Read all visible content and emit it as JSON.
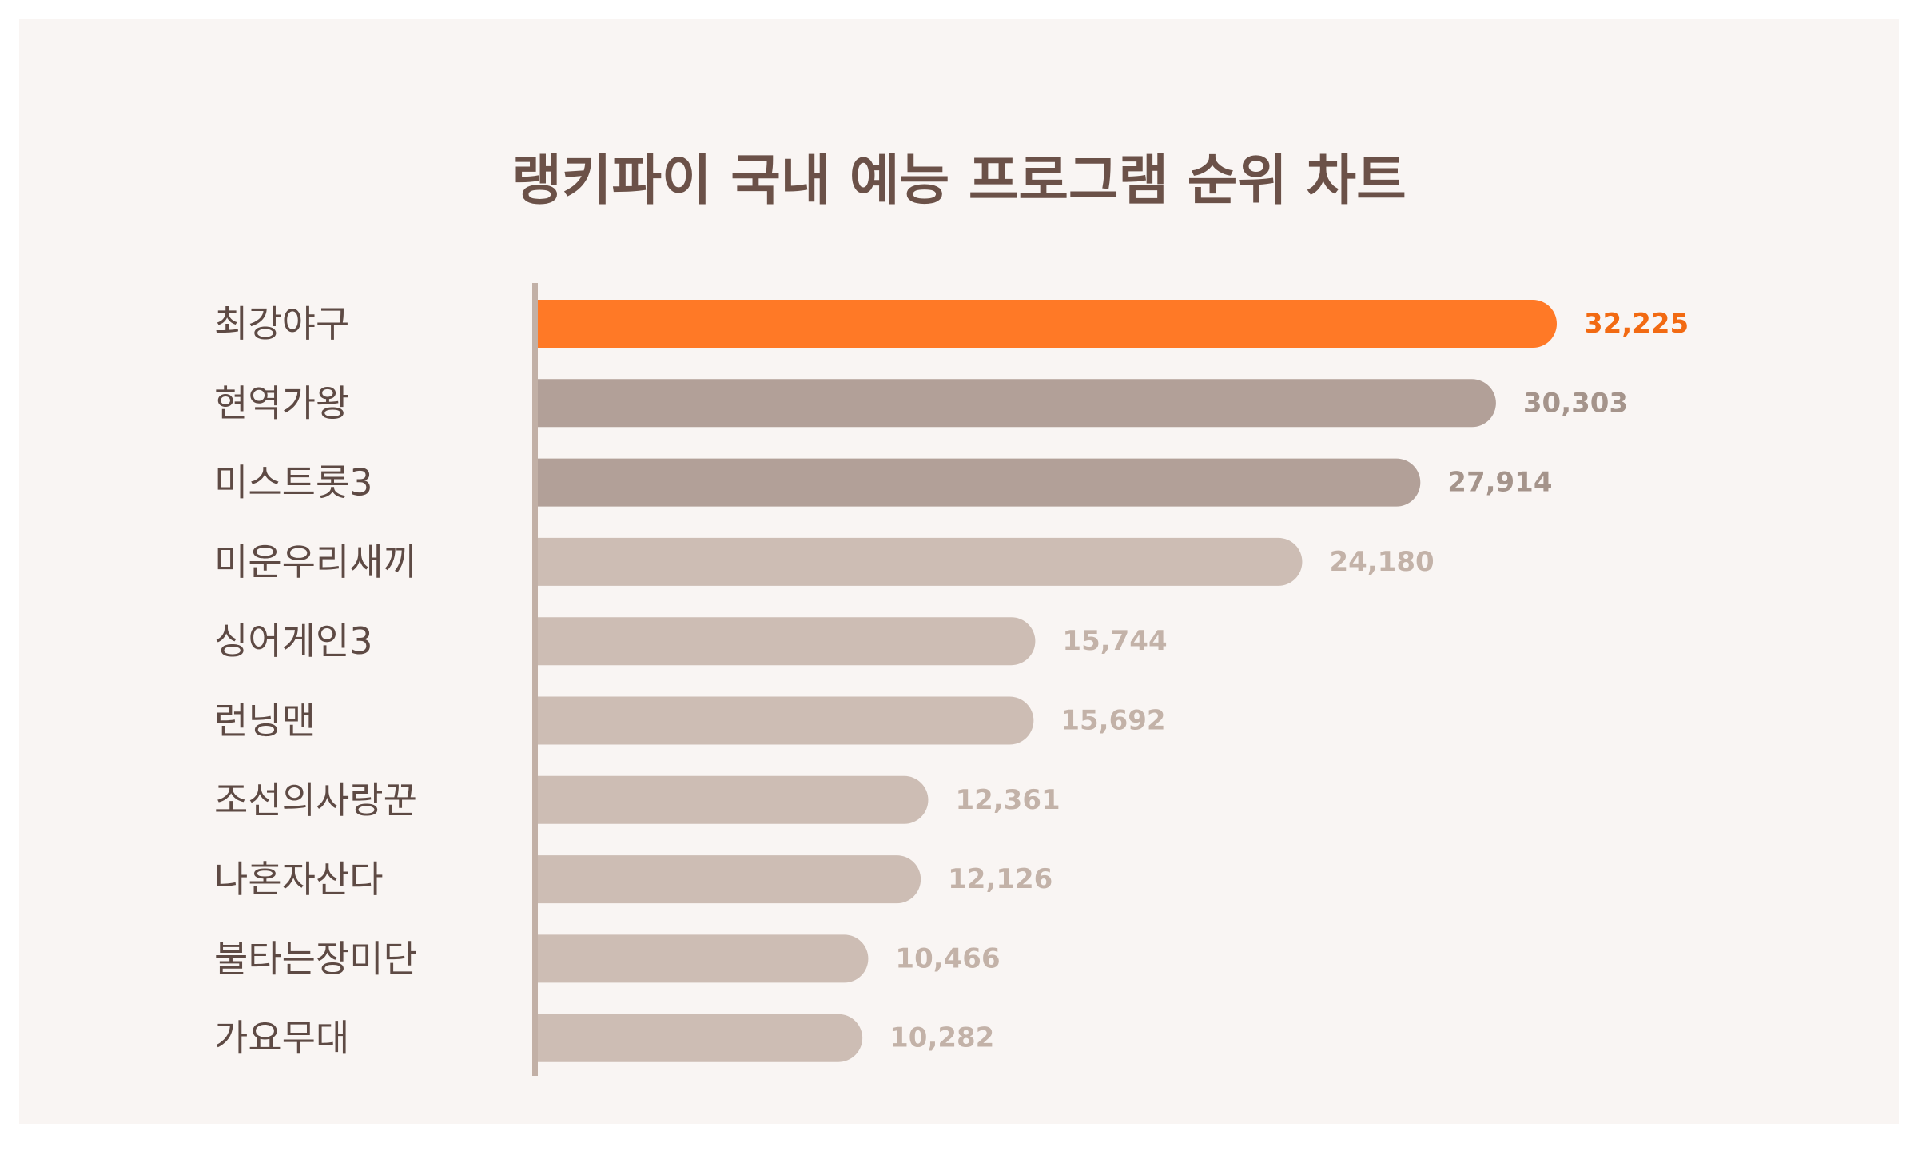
{
  "chart_data": {
    "type": "bar",
    "orientation": "horizontal",
    "title": "랭키파이 국내 예능 프로그램 순위 차트",
    "categories": [
      "최강야구",
      "현역가왕",
      "미스트롯3",
      "미운우리새끼",
      "싱어게인3",
      "런닝맨",
      "조선의사랑꾼",
      "나혼자산다",
      "불타는장미단",
      "가요무대"
    ],
    "values": [
      32225,
      30303,
      27914,
      24180,
      15744,
      15692,
      12361,
      12126,
      10466,
      10282
    ],
    "value_labels": [
      "32,225",
      "30,303",
      "27,914",
      "24,180",
      "15,744",
      "15,692",
      "12,361",
      "12,126",
      "10,466",
      "10,282"
    ],
    "xlim": [
      0,
      32225
    ],
    "grid": false,
    "legend": "none"
  },
  "colors": {
    "background": "#f9f5f3",
    "title": "#6b5148",
    "category_text": "#5e4a44",
    "axis": "#c2b0a6",
    "top1_bar": "#ff7926",
    "top1_label": "#f26a12",
    "top3_bar": "#b2a098",
    "top3_label": "#a5948b",
    "rest_bar": "#cdbdb4",
    "rest_label": "#c3b2a8"
  }
}
